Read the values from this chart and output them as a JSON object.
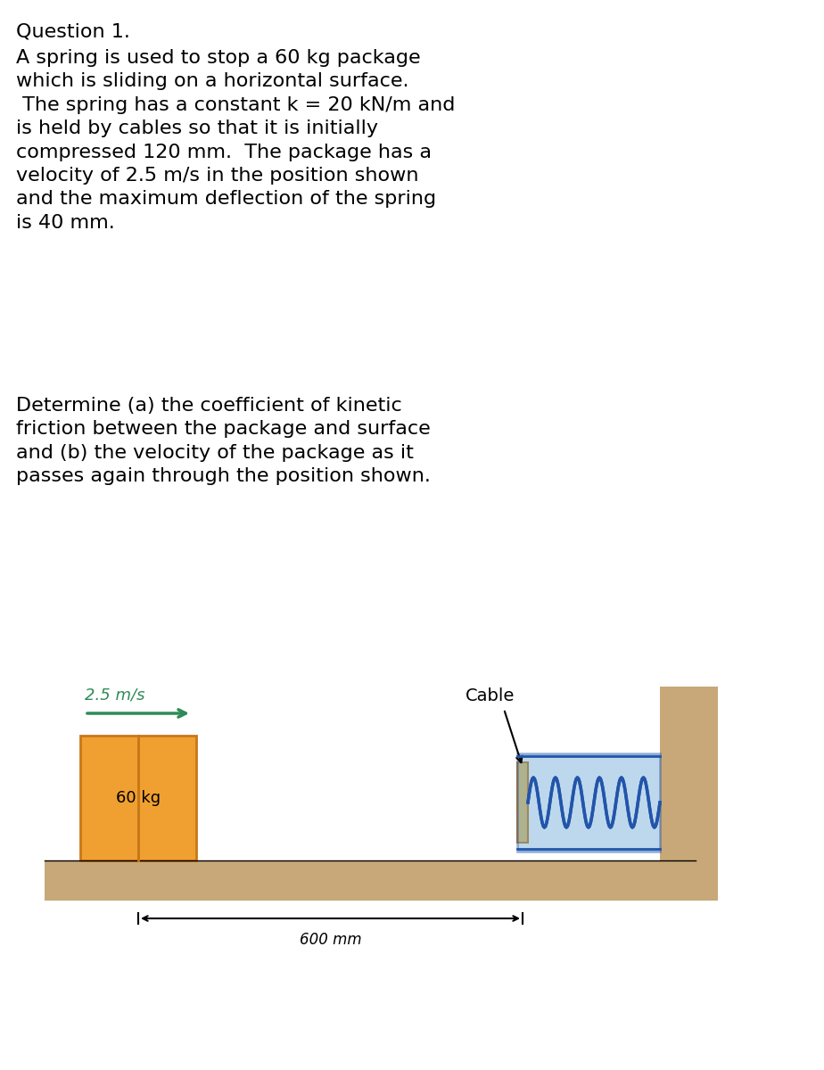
{
  "background_color": "#ffffff",
  "title_text": "Question 1.",
  "title_fontsize": 16,
  "body_text1": "A spring is used to stop a 60 kg package\nwhich is sliding on a horizontal surface.\n The spring has a constant k = 20 kN/m and\nis held by cables so that it is initially\ncompressed 120 mm.  The package has a\nvelocity of 2.5 m/s in the position shown\nand the maximum deflection of the spring\nis 40 mm.",
  "body_text2": "Determine (a) the coefficient of kinetic\nfriction between the package and surface\nand (b) the velocity of the package as it\npasses again through the position shown.",
  "body_fontsize": 16,
  "diagram_label_velocity": "2.5 m/s",
  "diagram_label_cable": "Cable",
  "diagram_label_mass": "60 kg",
  "diagram_label_distance": "600 mm",
  "velocity_color": "#2e8b57",
  "package_color": "#f0a030",
  "package_dark_line": "#c87818",
  "ground_color": "#c8a878",
  "wall_color": "#c8a878",
  "spring_color": "#5a9fd4",
  "spring_dark": "#2255aa",
  "cable_color": "#000000",
  "plate_color": "#e8c060",
  "text_color": "#000000"
}
